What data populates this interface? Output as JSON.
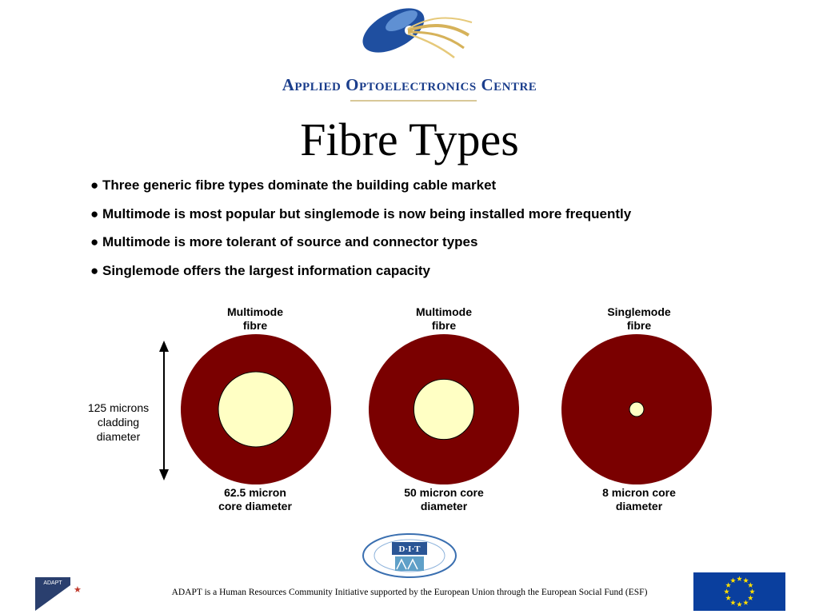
{
  "header": {
    "organisation": "Applied Optoelectronics Centre",
    "title": "Fibre Types"
  },
  "bullets": [
    "Three generic fibre types dominate the building cable market",
    "Multimode is most popular but singlemode is now being installed more frequently",
    "Multimode is more tolerant of source and connector types",
    "Singlemode offers the largest information capacity"
  ],
  "diagram": {
    "cladding_label_1": "125 microns",
    "cladding_label_2": "cladding",
    "cladding_label_3": "diameter",
    "colors": {
      "cladding": "#7a0000",
      "core": "#ffffc4"
    },
    "fibres": [
      {
        "type_line1": "Multimode",
        "type_line2": "fibre",
        "caption_line1": "62.5 micron",
        "caption_line2": "core diameter",
        "core_microns": 62.5
      },
      {
        "type_line1": "Multimode",
        "type_line2": "fibre",
        "caption_line1": "50 micron core",
        "caption_line2": "diameter",
        "core_microns": 50
      },
      {
        "type_line1": "Singlemode",
        "type_line2": "fibre",
        "caption_line1": "8 micron core",
        "caption_line2": "diameter",
        "core_microns": 8
      }
    ],
    "cladding_microns": 125
  },
  "footer": {
    "text": "ADAPT is a Human Resources Community Initiative supported by the European Union through the European Social Fund (ESF)",
    "dit_logo_text": "D·I·T",
    "adapt_logo_text": "ADAPT"
  }
}
